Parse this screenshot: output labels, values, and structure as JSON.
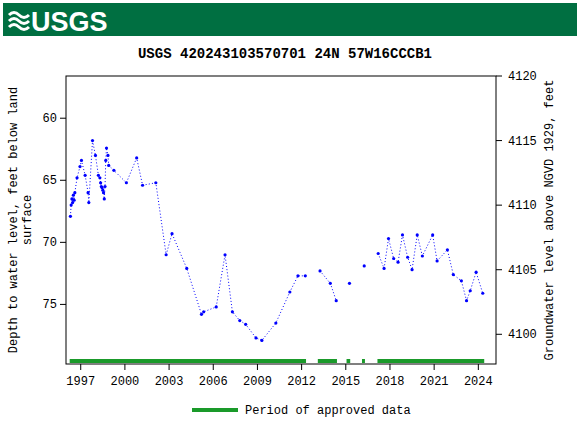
{
  "header": {
    "logo": "USGS"
  },
  "chart_data": {
    "type": "line",
    "title": "USGS 420243103570701  24N 57W16CCCB1",
    "y_label": [
      "Depth to water level, feet below land",
      "surface"
    ],
    "y2_label": "Groundwater level above NGVD 1929, feet",
    "xlim": [
      1996.0,
      2025.2
    ],
    "xticks": [
      1997,
      2000,
      2003,
      2006,
      2009,
      2012,
      2015,
      2018,
      2021,
      2024
    ],
    "ylim": [
      79.8,
      56.6
    ],
    "yticks": [
      60,
      65,
      70,
      75
    ],
    "y2lim": [
      4097.7,
      4120
    ],
    "y2ticks": [
      4100,
      4105,
      4110,
      4115,
      4120
    ],
    "grid": false,
    "legend": "bottom",
    "series": [
      {
        "name": "Depth to water level",
        "color": "#0000ff",
        "marker": "circle",
        "line_style": "dotted",
        "x": [
          1996.3,
          1996.35,
          1996.4,
          1996.45,
          1996.5,
          1996.55,
          1996.6,
          1996.75,
          1996.95,
          1997.05,
          1997.3,
          1997.5,
          1997.55,
          1997.8,
          1998.0,
          1998.2,
          1998.3,
          1998.35,
          1998.4,
          1998.45,
          1998.5,
          1998.55,
          1998.6,
          1998.65,
          1998.7,
          1998.75,
          1998.85,
          1998.9,
          1999.25,
          2000.1,
          2000.8,
          2001.2,
          2002.1,
          2002.8,
          2003.2,
          2004.2,
          2005.2,
          2005.35,
          2006.2,
          2006.8,
          2007.3,
          2007.8,
          2008.2,
          2008.9,
          2009.3,
          2010.25,
          2011.2,
          2011.75,
          2012.25,
          2012.75,
          2013.25,
          2013.95,
          2014.35,
          2014.8,
          2015.25,
          2015.75,
          2016.25,
          2016.7,
          2017.2,
          2017.6,
          2017.9,
          2018.25,
          2018.55,
          2018.85,
          2019.2,
          2019.5,
          2019.85,
          2020.2,
          2020.9,
          2021.2,
          2021.9,
          2022.3,
          2022.85,
          2023.2,
          2023.45,
          2023.85,
          2024.3
        ],
        "values": [
          67.9,
          67.0,
          66.5,
          66.8,
          66.2,
          66.6,
          66.0,
          64.8,
          63.9,
          63.4,
          64.6,
          66.0,
          66.8,
          61.8,
          63.0,
          64.6,
          64.8,
          65.2,
          65.5,
          65.6,
          65.8,
          66.0,
          66.5,
          65.5,
          63.4,
          62.4,
          63.0,
          63.8,
          64.2,
          65.2,
          63.2,
          65.4,
          65.2,
          71.0,
          69.3,
          72.1,
          75.8,
          75.6,
          75.2,
          71.0,
          75.6,
          76.3,
          76.6,
          77.7,
          77.9,
          76.5,
          74.0,
          72.7,
          72.7,
          null,
          72.3,
          73.3,
          74.7,
          null,
          73.3,
          null,
          71.9,
          null,
          70.9,
          72.1,
          69.7,
          71.3,
          71.6,
          69.4,
          71.2,
          72.2,
          69.4,
          71.1,
          69.4,
          71.5,
          70.6,
          72.6,
          73.1,
          74.7,
          73.9,
          72.4,
          74.1
        ]
      }
    ],
    "periods": {
      "name": "Period of approved data",
      "color": "#1a9a2a",
      "ranges": [
        [
          1996.25,
          2012.3
        ],
        [
          2013.1,
          2014.4
        ],
        [
          2015.05,
          2015.3
        ],
        [
          2016.1,
          2016.3
        ],
        [
          2017.15,
          2024.4
        ]
      ]
    }
  }
}
